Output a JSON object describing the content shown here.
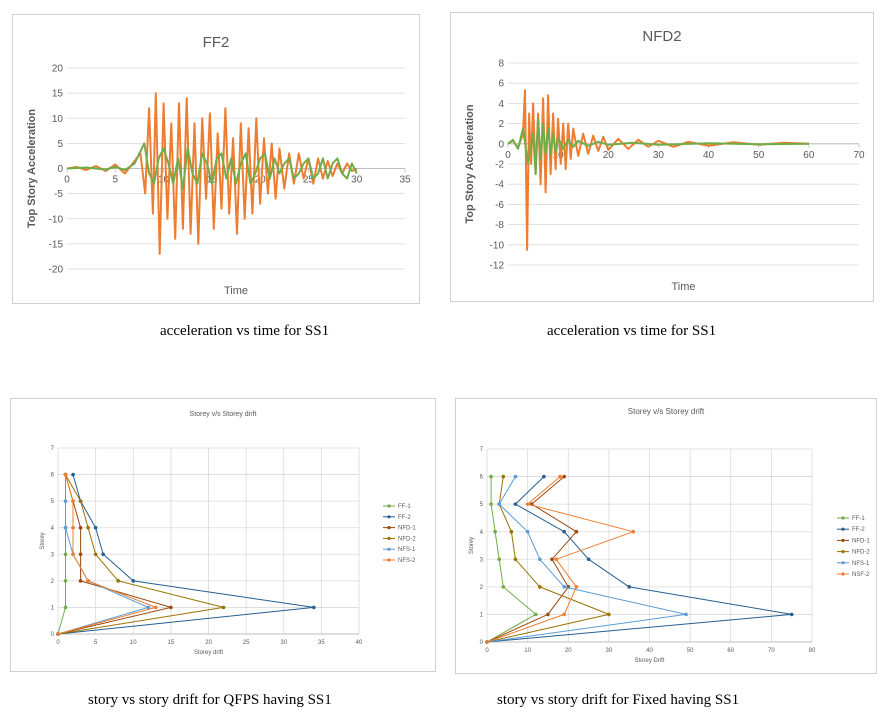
{
  "captions": {
    "c1": "acceleration vs time for SS1",
    "c2": "acceleration vs time for SS1",
    "c3": "story vs story drift for QFPS having SS1",
    "c4": "story vs story drift for Fixed having SS1"
  },
  "chart_data": [
    {
      "type": "line",
      "title": "FF2",
      "xlabel": "Time",
      "ylabel": "Top Story Acceleration",
      "xlim": [
        0,
        35
      ],
      "ylim": [
        -20,
        20
      ],
      "xticks": [
        "0",
        "5",
        "10",
        "15",
        "20",
        "25",
        "30",
        "35"
      ],
      "yticks": [
        "20",
        "15",
        "10",
        "5",
        "0",
        "-5",
        "-10",
        "-15",
        "-20"
      ],
      "grid": "horizontal",
      "series": [
        {
          "color": "#ed7d31",
          "x": [
            0,
            1,
            2,
            3,
            4,
            5,
            6,
            7,
            7.6,
            8.1,
            8.5,
            8.9,
            9.2,
            9.6,
            10.0,
            10.4,
            10.8,
            11.2,
            11.6,
            12.0,
            12.4,
            12.8,
            13.2,
            13.6,
            14.0,
            14.4,
            14.8,
            15.2,
            15.6,
            16.0,
            16.4,
            16.8,
            17.2,
            17.6,
            18.0,
            18.4,
            18.8,
            19.2,
            19.6,
            20.0,
            20.4,
            20.8,
            21.2,
            21.6,
            22.0,
            22.5,
            23.0,
            23.5,
            24.0,
            24.5,
            25.0,
            25.5,
            26.0,
            26.5,
            27.0,
            27.5,
            28.0,
            28.5,
            29.0,
            29.5,
            30.0
          ],
          "y": [
            0,
            0.3,
            -0.3,
            0.5,
            -0.5,
            0.8,
            -1,
            1.5,
            3,
            -5,
            12,
            -9,
            15,
            -17,
            13,
            -10,
            9,
            -14,
            13,
            -12,
            14,
            -13,
            9,
            -15,
            10,
            -6,
            11,
            -12,
            7,
            -8,
            12,
            -9,
            6,
            -13,
            9,
            -10,
            8,
            -9,
            10,
            -7,
            6,
            -5,
            5,
            -6,
            4,
            -4,
            3,
            -3,
            3,
            -2,
            2,
            -3,
            2,
            -2,
            1.5,
            -1.5,
            1,
            -1,
            1,
            -0.5,
            0
          ]
        },
        {
          "color": "#70ad47",
          "x": [
            0,
            2,
            4,
            5,
            6,
            7,
            7.5,
            8,
            8.5,
            9,
            9.5,
            10,
            10.5,
            11,
            11.5,
            12,
            12.5,
            13,
            13.5,
            14,
            14.5,
            15,
            15.5,
            16,
            16.5,
            17,
            17.5,
            18,
            18.5,
            19,
            19.5,
            20,
            20.5,
            21,
            21.5,
            22,
            22.5,
            23,
            23.5,
            24,
            24.5,
            25,
            25.5,
            26,
            26.5,
            27,
            27.5,
            28,
            28.5,
            29,
            29.5,
            30
          ],
          "y": [
            0,
            0.2,
            -0.2,
            0.3,
            -0.3,
            1,
            3,
            5,
            -1,
            -3,
            2,
            4,
            1,
            -3,
            2,
            -4,
            4,
            -1,
            -3,
            3,
            1,
            -3,
            2,
            3,
            -2,
            2,
            -3,
            1,
            3,
            -3,
            -1,
            2,
            3,
            -2,
            2,
            -1,
            1,
            2,
            -2,
            -1,
            1,
            2,
            -2,
            -1,
            2,
            -2,
            1,
            2,
            -1,
            -2,
            1,
            -1
          ]
        }
      ]
    },
    {
      "type": "line",
      "title": "NFD2",
      "xlabel": "Time",
      "ylabel": "Top Story Acceleration",
      "xlim": [
        0,
        70
      ],
      "ylim": [
        -12,
        8
      ],
      "xticks": [
        "0",
        "10",
        "20",
        "30",
        "40",
        "50",
        "60",
        "70"
      ],
      "yticks": [
        "8",
        "6",
        "4",
        "2",
        "0",
        "-2",
        "-4",
        "-6",
        "-8",
        "-10",
        "-12"
      ],
      "grid": "horizontal",
      "series": [
        {
          "color": "#ed7d31",
          "x": [
            0,
            1,
            2,
            3,
            3.4,
            3.8,
            4.2,
            4.6,
            5,
            5.5,
            6,
            6.5,
            7,
            7.5,
            8,
            8.5,
            9,
            9.5,
            10,
            10.5,
            11,
            11.5,
            12,
            12.5,
            13,
            14,
            15,
            16,
            17,
            18,
            19,
            20,
            22,
            24,
            26,
            28,
            30,
            33,
            36,
            40,
            45,
            50,
            55,
            60
          ],
          "y": [
            0,
            0.3,
            -0.4,
            1,
            5.3,
            -10.5,
            3,
            -2,
            4,
            -3,
            3,
            -4,
            4.5,
            -4.8,
            4.8,
            -3,
            3,
            -2.5,
            2.5,
            -2,
            2,
            -2.5,
            2,
            -1.5,
            1.5,
            -1.2,
            1,
            -1,
            0.8,
            -0.7,
            0.7,
            -0.6,
            0.5,
            -0.5,
            0.4,
            -0.3,
            0.3,
            -0.3,
            0.2,
            -0.2,
            0.15,
            -0.1,
            0.1,
            0
          ]
        },
        {
          "color": "#70ad47",
          "x": [
            0,
            1,
            2,
            3,
            4,
            5,
            5.5,
            6,
            6.5,
            7,
            7.5,
            8,
            8.5,
            9,
            9.5,
            10,
            11,
            12,
            13,
            14,
            16,
            18,
            20,
            25,
            30,
            40,
            50,
            60
          ],
          "y": [
            0,
            0.4,
            -0.5,
            1.5,
            -2,
            1,
            -3,
            2.5,
            -1.5,
            2,
            -1,
            1.5,
            -1,
            1,
            -0.8,
            0.6,
            -0.5,
            0.4,
            -0.3,
            0.3,
            -0.2,
            0.2,
            -0.1,
            0.1,
            -0.1,
            0.05,
            -0.05,
            0
          ]
        }
      ]
    },
    {
      "type": "line",
      "title": "Storey v/s Storey drift",
      "xlabel": "Storey drift",
      "ylabel": "Storey",
      "xlim": [
        0,
        40
      ],
      "ylim": [
        0,
        7
      ],
      "xticks": [
        "0",
        "5",
        "10",
        "15",
        "20",
        "25",
        "30",
        "35",
        "40"
      ],
      "yticks": [
        "7",
        "6",
        "5",
        "4",
        "3",
        "2",
        "1",
        "0"
      ],
      "grid": "both",
      "legend": "right",
      "series": [
        {
          "name": "FF-1",
          "color": "#70ad47",
          "x": [
            0,
            1,
            1,
            1,
            1,
            1,
            1
          ],
          "y": [
            0,
            1,
            2,
            3,
            4,
            5,
            6
          ]
        },
        {
          "name": "FF-2",
          "color": "#255e91",
          "x": [
            0,
            34,
            10,
            6,
            5,
            3,
            2
          ],
          "y": [
            0,
            1,
            2,
            3,
            4,
            5,
            6
          ]
        },
        {
          "name": "NFD-1",
          "color": "#9e480e",
          "x": [
            0,
            15,
            3,
            3,
            3,
            2,
            1
          ],
          "y": [
            0,
            1,
            2,
            3,
            4,
            5,
            6
          ]
        },
        {
          "name": "NFD-2",
          "color": "#997300",
          "x": [
            0,
            22,
            8,
            5,
            4,
            3,
            1
          ],
          "y": [
            0,
            1,
            2,
            3,
            4,
            5,
            6
          ]
        },
        {
          "name": "NFS-1",
          "color": "#5b9bd5",
          "x": [
            0,
            12,
            4,
            2,
            1,
            1,
            1
          ],
          "y": [
            0,
            1,
            2,
            3,
            4,
            5,
            6
          ]
        },
        {
          "name": "NFS-2",
          "color": "#ed7d31",
          "x": [
            0,
            13,
            4,
            2,
            2,
            2,
            1
          ],
          "y": [
            0,
            1,
            2,
            3,
            4,
            5,
            6
          ]
        }
      ]
    },
    {
      "type": "line",
      "title": "Storey v/s Storey drift",
      "xlabel": "Storey Drift",
      "ylabel": "Storey",
      "xlim": [
        0,
        80
      ],
      "ylim": [
        0,
        7
      ],
      "xticks": [
        "0",
        "10",
        "20",
        "30",
        "40",
        "50",
        "60",
        "70",
        "80"
      ],
      "yticks": [
        "7",
        "6",
        "5",
        "4",
        "3",
        "2",
        "1",
        "0"
      ],
      "grid": "both",
      "legend": "right",
      "series": [
        {
          "name": "FF-1",
          "color": "#70ad47",
          "x": [
            0,
            12,
            4,
            3,
            2,
            1,
            1
          ],
          "y": [
            0,
            1,
            2,
            3,
            4,
            5,
            6
          ]
        },
        {
          "name": "FF-2",
          "color": "#255e91",
          "x": [
            0,
            75,
            35,
            25,
            19,
            7,
            14
          ],
          "y": [
            0,
            1,
            2,
            3,
            4,
            5,
            6
          ]
        },
        {
          "name": "NFD-1",
          "color": "#9e480e",
          "x": [
            0,
            15,
            20,
            16,
            22,
            11,
            19
          ],
          "y": [
            0,
            1,
            2,
            3,
            4,
            5,
            6
          ]
        },
        {
          "name": "NFD-2",
          "color": "#997300",
          "x": [
            0,
            30,
            13,
            7,
            6,
            3,
            4
          ],
          "y": [
            0,
            1,
            2,
            3,
            4,
            5,
            6
          ]
        },
        {
          "name": "NFS-1",
          "color": "#5b9bd5",
          "x": [
            0,
            49,
            19,
            13,
            10,
            3,
            7
          ],
          "y": [
            0,
            1,
            2,
            3,
            4,
            5,
            6
          ]
        },
        {
          "name": "NSF-2",
          "color": "#ed7d31",
          "x": [
            0,
            19,
            22,
            17,
            36,
            10,
            18
          ],
          "y": [
            0,
            1,
            2,
            3,
            4,
            5,
            6
          ]
        }
      ]
    }
  ]
}
